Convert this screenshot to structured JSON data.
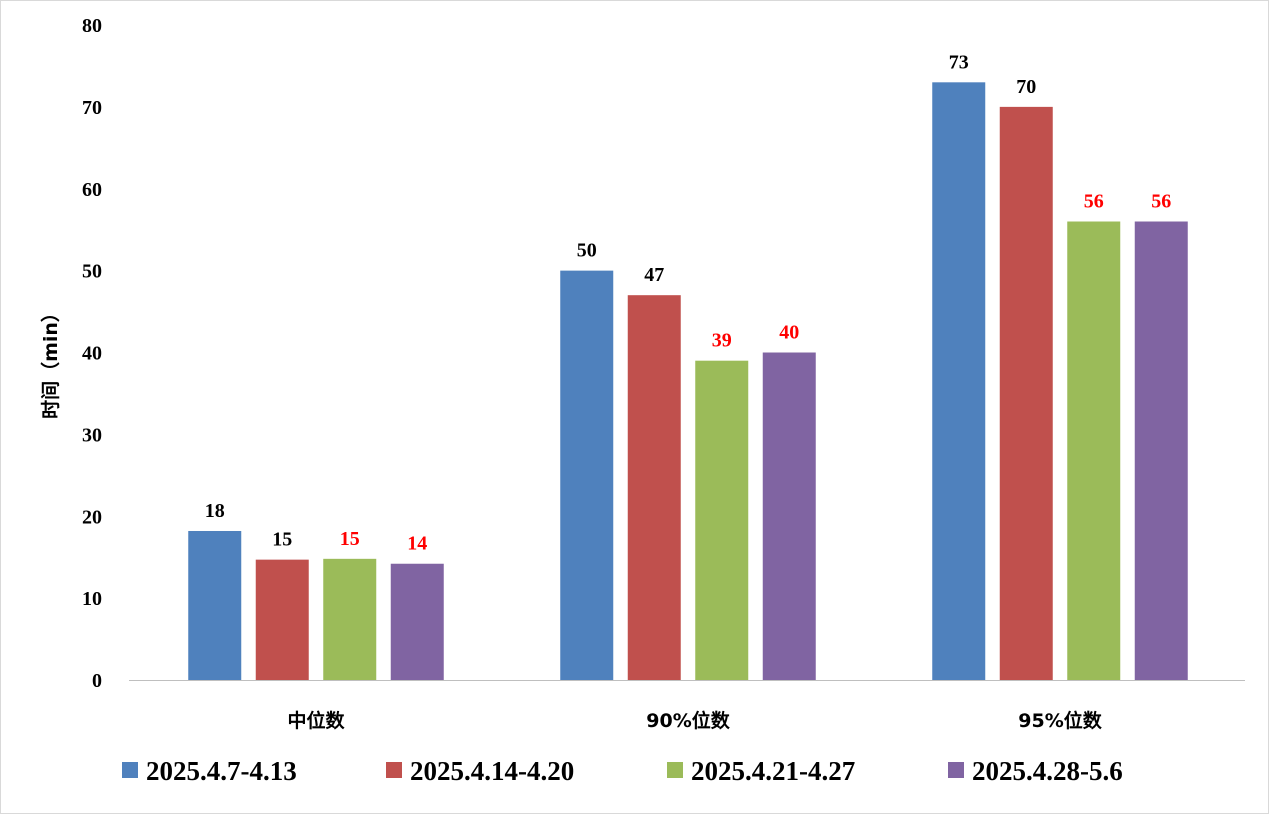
{
  "chart_data": {
    "type": "bar",
    "ylabel": "时间（min）",
    "ylim": [
      0,
      80
    ],
    "y_ticks": [
      0,
      10,
      20,
      30,
      40,
      50,
      60,
      70,
      80
    ],
    "categories": [
      "中位数",
      "90%位数",
      "95%位数"
    ],
    "series": [
      {
        "name": "2025.4.7-4.13",
        "color": "#4F81BD",
        "values": [
          18,
          50,
          73
        ],
        "label_colors": [
          "#000000",
          "#000000",
          "#000000"
        ]
      },
      {
        "name": "2025.4.14-4.20",
        "color": "#C0504D",
        "values": [
          15,
          47,
          70
        ],
        "label_colors": [
          "#000000",
          "#000000",
          "#000000"
        ]
      },
      {
        "name": "2025.4.21-4.27",
        "color": "#9BBB59",
        "values": [
          15,
          39,
          56
        ],
        "label_colors": [
          "#FF0000",
          "#FF0000",
          "#FF0000"
        ]
      },
      {
        "name": "2025.4.28-5.6",
        "color": "#8064A2",
        "values": [
          14,
          40,
          56
        ],
        "label_colors": [
          "#FF0000",
          "#FF0000",
          "#FF0000"
        ]
      }
    ],
    "plotted_values": [
      [
        18.2,
        50,
        73
      ],
      [
        14.7,
        47,
        70
      ],
      [
        14.8,
        39,
        56
      ],
      [
        14.2,
        40,
        56
      ]
    ],
    "grid": false,
    "legend_position": "bottom"
  }
}
